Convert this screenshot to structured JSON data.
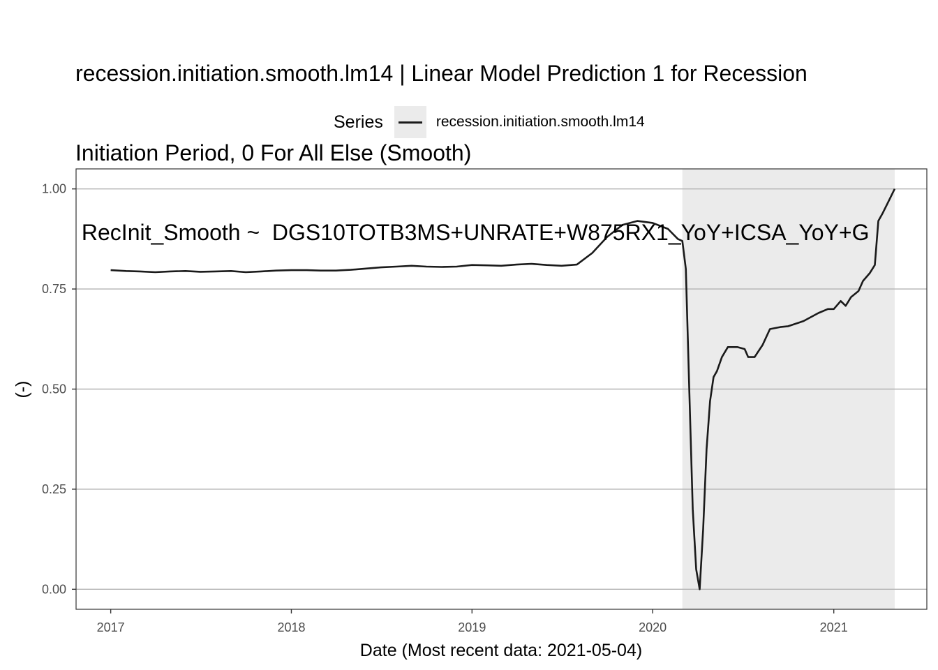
{
  "chart_data": {
    "type": "line",
    "title_lines": [
      "recession.initiation.smooth.lm14 | Linear Model Prediction 1 for Recession",
      "Initiation Period, 0 For All Else (Smooth)",
      " RecInit_Smooth ~  DGS10TOTB3MS+UNRATE+W875RX1_YoY+ICSA_YoY+G"
    ],
    "xlabel": "Date (Most recent data: 2021-05-04)",
    "ylabel": "(-)",
    "legend_title": "Series",
    "legend_position": "top",
    "xlim": [
      "2016-10-23",
      "2021-07-08"
    ],
    "ylim": [
      -0.05,
      1.05
    ],
    "x_ticks": [
      "2017",
      "2018",
      "2019",
      "2020",
      "2021"
    ],
    "y_ticks": [
      "0.00",
      "0.25",
      "0.50",
      "0.75",
      "1.00"
    ],
    "grid": "major-y",
    "shaded_region": {
      "start": "2020-03-01",
      "end": "2021-05-04",
      "color": "#ebebeb"
    },
    "series": [
      {
        "name": "recession.initiation.smooth.lm14",
        "color": "#1a1a1a",
        "points": [
          [
            "2017-01-01",
            0.797
          ],
          [
            "2017-02-01",
            0.795
          ],
          [
            "2017-03-01",
            0.794
          ],
          [
            "2017-04-01",
            0.792
          ],
          [
            "2017-05-01",
            0.794
          ],
          [
            "2017-06-01",
            0.795
          ],
          [
            "2017-07-01",
            0.793
          ],
          [
            "2017-08-01",
            0.794
          ],
          [
            "2017-09-01",
            0.795
          ],
          [
            "2017-10-01",
            0.792
          ],
          [
            "2017-11-01",
            0.794
          ],
          [
            "2017-12-01",
            0.796
          ],
          [
            "2018-01-01",
            0.797
          ],
          [
            "2018-02-01",
            0.797
          ],
          [
            "2018-03-01",
            0.796
          ],
          [
            "2018-04-01",
            0.796
          ],
          [
            "2018-05-01",
            0.798
          ],
          [
            "2018-06-01",
            0.801
          ],
          [
            "2018-07-01",
            0.804
          ],
          [
            "2018-08-01",
            0.806
          ],
          [
            "2018-09-01",
            0.808
          ],
          [
            "2018-10-01",
            0.806
          ],
          [
            "2018-11-01",
            0.805
          ],
          [
            "2018-12-01",
            0.806
          ],
          [
            "2019-01-01",
            0.81
          ],
          [
            "2019-02-01",
            0.809
          ],
          [
            "2019-03-01",
            0.808
          ],
          [
            "2019-04-01",
            0.811
          ],
          [
            "2019-05-01",
            0.813
          ],
          [
            "2019-06-01",
            0.81
          ],
          [
            "2019-07-01",
            0.808
          ],
          [
            "2019-08-01",
            0.811
          ],
          [
            "2019-09-01",
            0.84
          ],
          [
            "2019-10-01",
            0.88
          ],
          [
            "2019-11-01",
            0.91
          ],
          [
            "2019-12-01",
            0.92
          ],
          [
            "2020-01-01",
            0.915
          ],
          [
            "2020-02-01",
            0.9
          ],
          [
            "2020-02-21",
            0.875
          ],
          [
            "2020-03-01",
            0.87
          ],
          [
            "2020-03-08",
            0.8
          ],
          [
            "2020-03-15",
            0.5
          ],
          [
            "2020-03-22",
            0.2
          ],
          [
            "2020-03-29",
            0.05
          ],
          [
            "2020-04-05",
            0.0
          ],
          [
            "2020-04-12",
            0.15
          ],
          [
            "2020-04-19",
            0.35
          ],
          [
            "2020-04-26",
            0.47
          ],
          [
            "2020-05-03",
            0.53
          ],
          [
            "2020-05-10",
            0.545
          ],
          [
            "2020-05-20",
            0.58
          ],
          [
            "2020-06-01",
            0.605
          ],
          [
            "2020-06-20",
            0.605
          ],
          [
            "2020-07-05",
            0.6
          ],
          [
            "2020-07-12",
            0.58
          ],
          [
            "2020-07-25",
            0.58
          ],
          [
            "2020-08-10",
            0.61
          ],
          [
            "2020-08-25",
            0.65
          ],
          [
            "2020-09-15",
            0.655
          ],
          [
            "2020-10-01",
            0.657
          ],
          [
            "2020-11-01",
            0.67
          ],
          [
            "2020-12-01",
            0.69
          ],
          [
            "2020-12-20",
            0.7
          ],
          [
            "2021-01-01",
            0.7
          ],
          [
            "2021-01-15",
            0.72
          ],
          [
            "2021-01-25",
            0.708
          ],
          [
            "2021-02-05",
            0.73
          ],
          [
            "2021-02-20",
            0.745
          ],
          [
            "2021-03-01",
            0.77
          ],
          [
            "2021-03-15",
            0.79
          ],
          [
            "2021-03-25",
            0.81
          ],
          [
            "2021-04-01",
            0.92
          ],
          [
            "2021-04-10",
            0.94
          ],
          [
            "2021-04-20",
            0.965
          ],
          [
            "2021-05-04",
            1.0
          ]
        ]
      }
    ]
  }
}
